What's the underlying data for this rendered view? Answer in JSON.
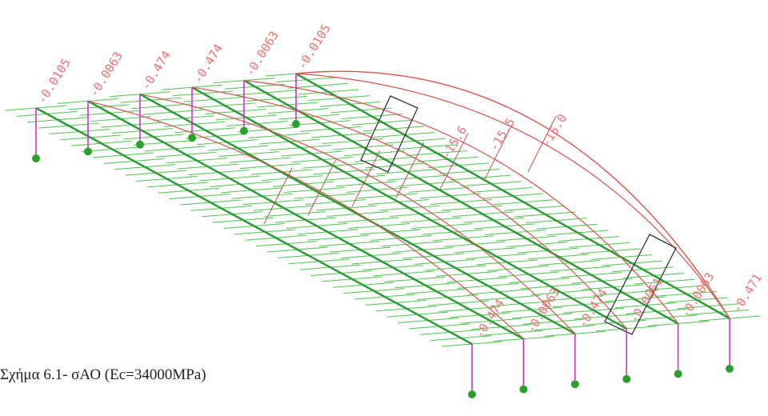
{
  "figure": {
    "caption": "Σχήμα 6.1- σΑΟ (Ec=34000MPa)",
    "top_labels": [
      "-0.0105",
      "-0.0063",
      "-0.474",
      "-0.474",
      "-0.0063",
      "-0.0105"
    ],
    "mid_labels": [
      "-15.6",
      "-15.5",
      "-15.0"
    ],
    "bottom_labels": [
      "-0.474",
      "-0.0063",
      "-0.474",
      "-0.0061",
      "-0.0063",
      "-0.471"
    ]
  }
}
